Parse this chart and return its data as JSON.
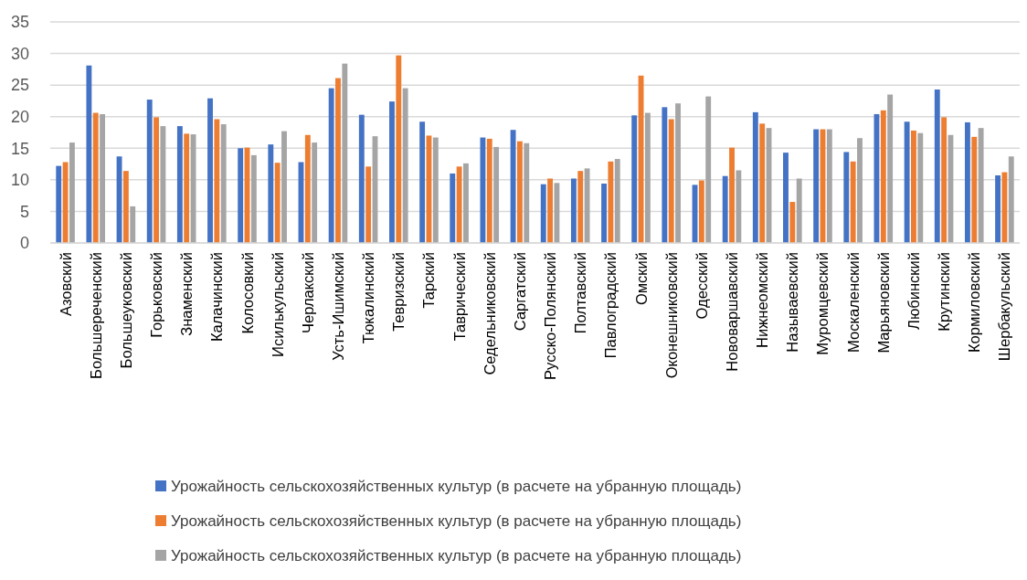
{
  "chart_data": {
    "type": "bar",
    "categories": [
      "Азовский",
      "Большереченский",
      "Большеуковский",
      "Горьковский",
      "Знаменский",
      "Калачинский",
      "Колосовкий",
      "Исилькульский",
      "Черлакский",
      "Усть-Ишимский",
      "Тюкалинский",
      "Тевризский",
      "Тарский",
      "Таврический",
      "Седельниковский",
      "Саргатский",
      "Русско-Полянский",
      "Полтавский",
      "Павлоградский",
      "Омский",
      "Оконешниковский",
      "Одесский",
      "Нововаршавский",
      "Нижнеомский",
      "Называевский",
      "Муромцевский",
      "Москаленский",
      "Марьяновский",
      "Любинский",
      "Крутинский",
      "Кормиловский",
      "Шербакульский"
    ],
    "series": [
      {
        "name": "Урожайность сельскохозяйственных культур (в расчете на убранную площадь)",
        "color": "#4472c4",
        "values": [
          12.2,
          28.1,
          13.7,
          22.7,
          18.5,
          22.9,
          15.0,
          15.6,
          12.8,
          24.5,
          20.3,
          22.4,
          19.2,
          11.0,
          16.7,
          17.9,
          9.3,
          10.2,
          9.4,
          20.2,
          21.5,
          9.2,
          10.6,
          20.7,
          14.3,
          18.0,
          14.4,
          20.4,
          19.2,
          24.3,
          19.1,
          10.7
        ]
      },
      {
        "name": "Урожайность сельскохозяйственных культур (в расчете на убранную площадь)",
        "color": "#ed7d31",
        "values": [
          12.8,
          20.6,
          11.4,
          19.9,
          17.3,
          19.6,
          15.1,
          12.7,
          17.1,
          26.1,
          12.1,
          29.7,
          17.0,
          12.1,
          16.5,
          16.1,
          10.2,
          11.4,
          12.9,
          26.5,
          19.6,
          9.9,
          15.1,
          18.9,
          6.5,
          18.0,
          12.9,
          21.0,
          17.8,
          19.9,
          16.8,
          11.2
        ]
      },
      {
        "name": "Урожайность сельскохозяйственных культур (в расчете на убранную площадь)",
        "color": "#a5a5a5",
        "values": [
          15.9,
          20.4,
          5.8,
          18.5,
          17.2,
          18.8,
          13.9,
          17.7,
          15.9,
          28.4,
          16.9,
          24.5,
          16.7,
          12.6,
          15.2,
          15.8,
          9.5,
          11.8,
          13.3,
          20.6,
          22.1,
          23.2,
          11.5,
          18.2,
          10.2,
          18.0,
          16.6,
          23.5,
          17.4,
          17.1,
          18.2,
          13.7
        ]
      }
    ],
    "ylim": [
      0,
      35
    ],
    "yticks": [
      0,
      5,
      10,
      15,
      20,
      25,
      30,
      35
    ],
    "grid": "y",
    "legend": "bottom"
  }
}
